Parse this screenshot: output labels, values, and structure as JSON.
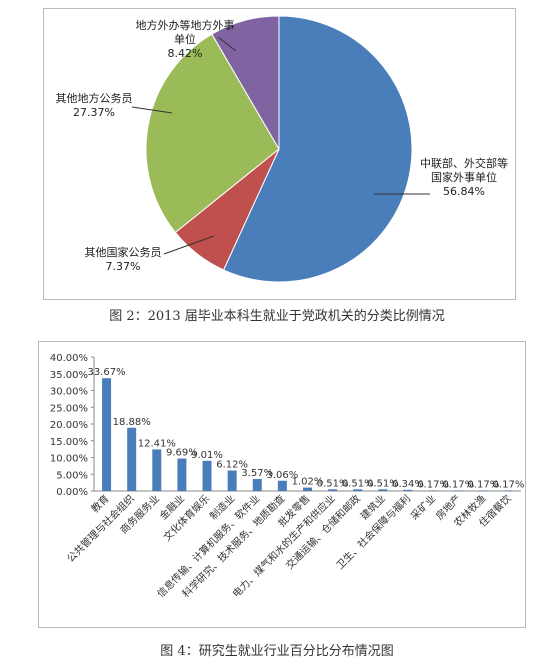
{
  "figures": [
    {
      "caption": "图 2：2013 届毕业本科生就业于党政机关的分类比例情况",
      "chart_data": {
        "type": "pie",
        "slices": [
          {
            "label": "中联部、外交部等国家外事单位",
            "value": 56.84,
            "display": "56.84%",
            "color": "#4a7ebb"
          },
          {
            "label": "其他国家公务员",
            "value": 7.37,
            "display": "7.37%",
            "color": "#c0504d"
          },
          {
            "label": "其他地方公务员",
            "value": 27.37,
            "display": "27.37%",
            "color": "#9bbb59"
          },
          {
            "label": "地方外办等地方外事单位",
            "value": 8.42,
            "display": "8.42%",
            "color": "#8064a2"
          }
        ]
      }
    },
    {
      "caption": "图 4：研究生就业行业百分比分布情况图",
      "chart_data": {
        "type": "bar",
        "categories": [
          "教育",
          "公共管理与社会组织",
          "商务服务业",
          "金融业",
          "文化体育娱乐",
          "制造业",
          "信息传输、计算机服务、软件业",
          "科学研究、技术服务、地质勘查",
          "批发零售",
          "电力、煤气和水的生产和供应业",
          "交通运输、仓储和邮政",
          "建筑业",
          "卫生、社会保障与福利",
          "采矿业",
          "房地产",
          "农林牧渔",
          "住宿餐饮"
        ],
        "values": [
          33.67,
          18.88,
          12.41,
          9.69,
          9.01,
          6.12,
          3.57,
          3.06,
          1.02,
          0.51,
          0.51,
          0.51,
          0.34,
          0.17,
          0.17,
          0.17,
          0.17
        ],
        "data_labels": [
          "33.67%",
          "18.88%",
          "12.41%",
          "9.69%",
          "9.01%",
          "6.12%",
          "3.57%",
          "3.06%",
          "1.02%",
          "0.51%",
          "0.51%",
          "0.51%",
          "0.34%",
          "0.17%",
          "0.17%",
          "0.17%",
          "0.17%"
        ],
        "ylim": [
          0,
          40
        ],
        "yticks": [
          "0.00%",
          "5.00%",
          "10.00%",
          "15.00%",
          "20.00%",
          "25.00%",
          "30.00%",
          "35.00%",
          "40.00%"
        ],
        "grid": false,
        "bar_color": "#4a7ebb"
      }
    }
  ]
}
